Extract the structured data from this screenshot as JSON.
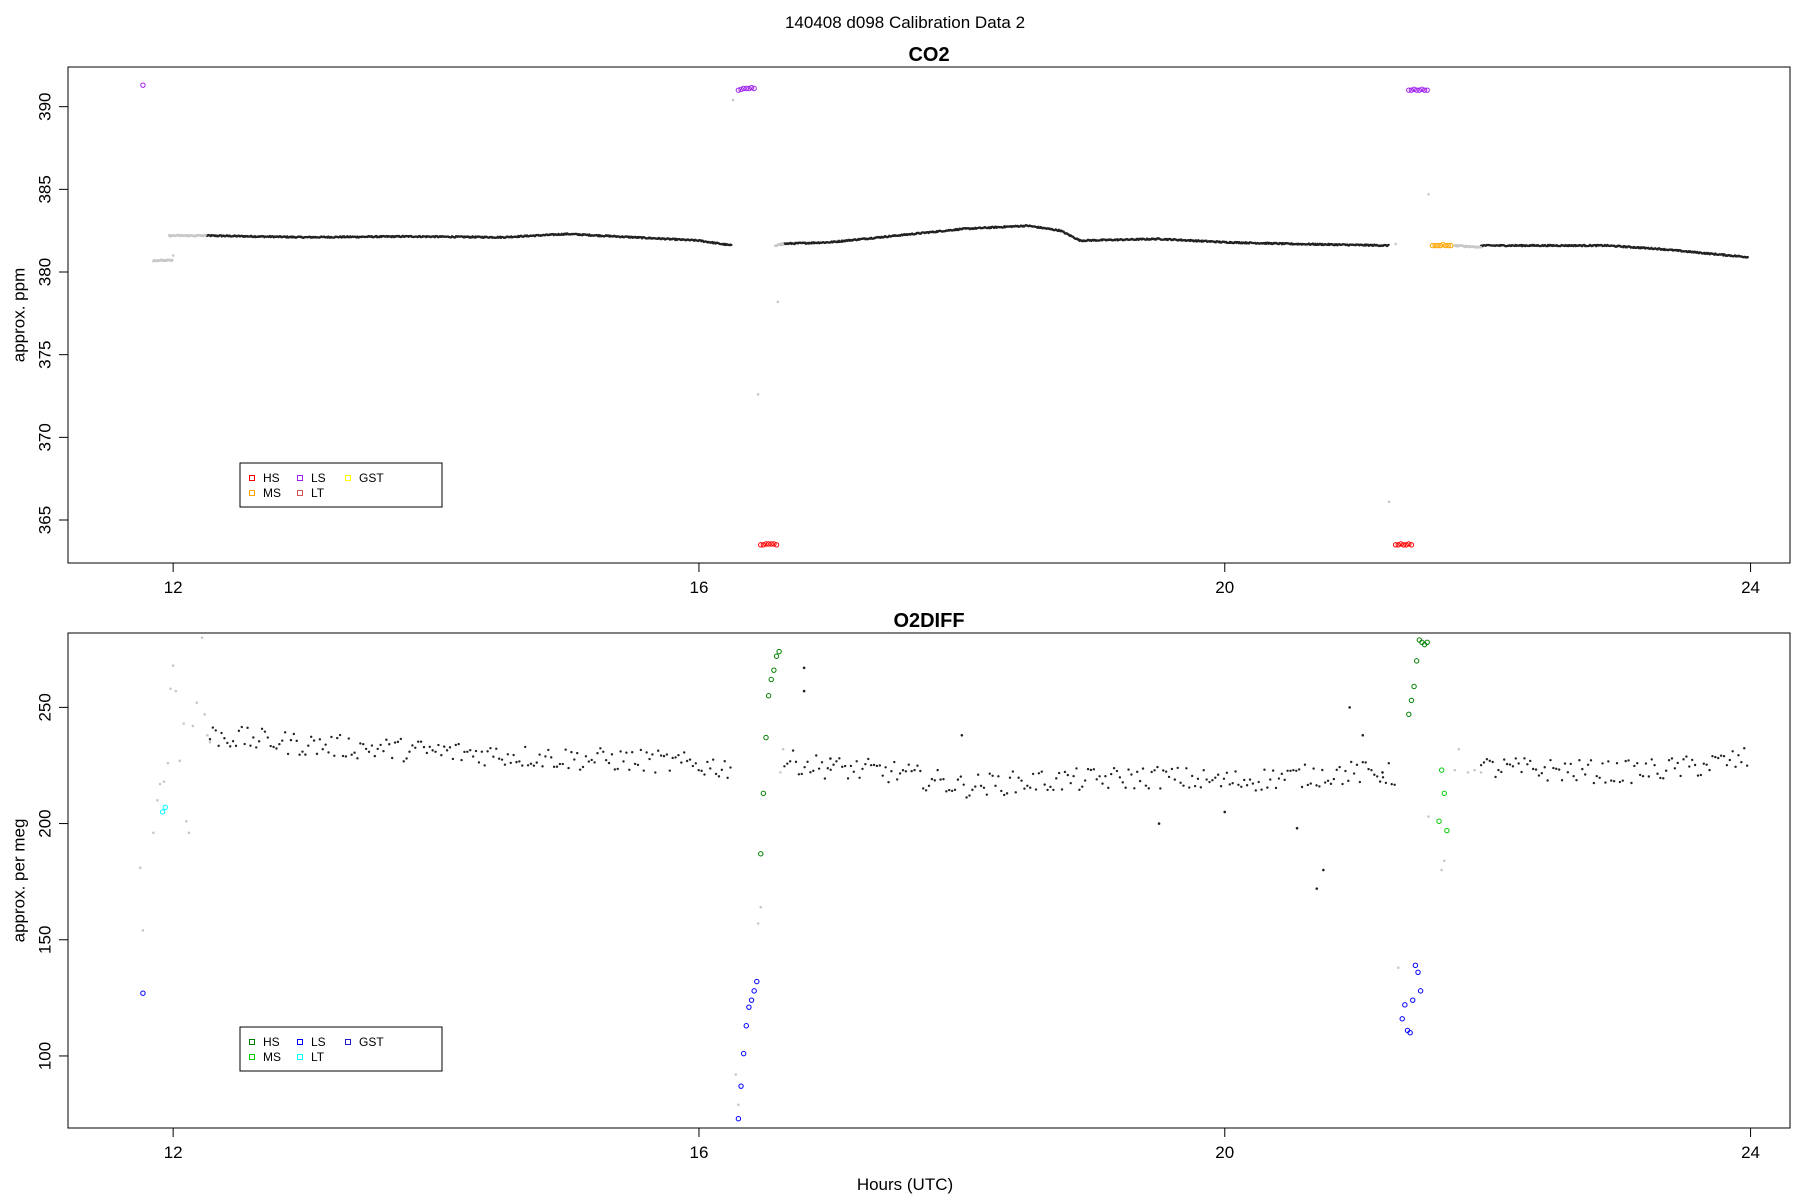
{
  "page_title": "140408   d098   Calibration Data 2",
  "xlabel": "Hours (UTC)",
  "chart_data": [
    {
      "type": "scatter",
      "title": "CO2",
      "ylabel": "approx. ppm",
      "xlim": [
        11.2,
        24.3
      ],
      "ylim": [
        362.4,
        392.4
      ],
      "xticks": [
        12,
        16,
        20,
        24
      ],
      "yticks": [
        365,
        370,
        375,
        380,
        385,
        390
      ],
      "grid": false,
      "legend_placement": "bottom-left",
      "legend": [
        {
          "name": "HS",
          "color": "#ff0000"
        },
        {
          "name": "MS",
          "color": "#ffa500"
        },
        {
          "name": "LS",
          "color": "#a020f0"
        },
        {
          "name": "LT",
          "color": "#cd5555"
        },
        {
          "name": "GST",
          "color": "#ffff00"
        }
      ],
      "series": [
        {
          "kind": "measurement",
          "color": "#222222",
          "segments": [
            {
              "x_start": 12.25,
              "x_end": 16.25,
              "points": [
                [
                  12.25,
                  382.2
                ],
                [
                  13.0,
                  382.1
                ],
                [
                  13.8,
                  382.15
                ],
                [
                  14.5,
                  382.1
                ],
                [
                  15.0,
                  382.3
                ],
                [
                  15.5,
                  382.1
                ],
                [
                  16.0,
                  381.9
                ],
                [
                  16.25,
                  381.6
                ]
              ]
            },
            {
              "x_start": 16.62,
              "x_end": 21.25,
              "points": [
                [
                  16.62,
                  381.7
                ],
                [
                  17.0,
                  381.8
                ],
                [
                  17.5,
                  382.2
                ],
                [
                  18.0,
                  382.6
                ],
                [
                  18.5,
                  382.8
                ],
                [
                  18.75,
                  382.5
                ],
                [
                  18.9,
                  381.9
                ],
                [
                  19.5,
                  382.0
                ],
                [
                  20.0,
                  381.8
                ],
                [
                  20.5,
                  381.7
                ],
                [
                  21.25,
                  381.6
                ]
              ]
            },
            {
              "x_start": 21.95,
              "x_end": 23.98,
              "points": [
                [
                  21.95,
                  381.6
                ],
                [
                  22.5,
                  381.6
                ],
                [
                  22.9,
                  381.6
                ],
                [
                  23.3,
                  381.4
                ],
                [
                  23.7,
                  381.1
                ],
                [
                  23.98,
                  380.9
                ]
              ]
            }
          ]
        },
        {
          "kind": "excluded",
          "color": "#c8c8c8",
          "segments": [
            {
              "x_start": 11.85,
              "x_end": 12.0,
              "points": [
                [
                  11.85,
                  380.7
                ],
                [
                  12.0,
                  380.7
                ]
              ]
            },
            {
              "x_start": 11.97,
              "x_end": 12.25,
              "points": [
                [
                  11.97,
                  382.2
                ],
                [
                  12.25,
                  382.2
                ]
              ]
            },
            {
              "x_start": 16.58,
              "x_end": 16.64,
              "points": [
                [
                  16.58,
                  381.6
                ],
                [
                  16.64,
                  381.7
                ]
              ]
            },
            {
              "x_start": 21.75,
              "x_end": 21.95,
              "points": [
                [
                  21.75,
                  381.6
                ],
                [
                  21.95,
                  381.5
                ]
              ]
            }
          ],
          "scatter": [
            [
              12.0,
              381.0
            ],
            [
              16.26,
              390.4
            ],
            [
              16.45,
              372.6
            ],
            [
              16.6,
              378.2
            ],
            [
              21.25,
              366.1
            ],
            [
              21.3,
              381.7
            ],
            [
              21.55,
              384.7
            ]
          ]
        },
        {
          "name": "LS",
          "color": "#a020f0",
          "points": [
            [
              11.77,
              391.3
            ],
            [
              16.3,
              391.0
            ],
            [
              16.32,
              391.05
            ],
            [
              16.34,
              391.1
            ],
            [
              16.36,
              391.1
            ],
            [
              16.38,
              391.1
            ],
            [
              16.4,
              391.15
            ],
            [
              16.42,
              391.1
            ],
            [
              21.4,
              391.0
            ],
            [
              21.42,
              391.0
            ],
            [
              21.44,
              391.05
            ],
            [
              21.46,
              391.0
            ],
            [
              21.48,
              391.0
            ],
            [
              21.5,
              391.05
            ],
            [
              21.52,
              391.0
            ],
            [
              21.54,
              391.0
            ]
          ]
        },
        {
          "name": "HS",
          "color": "#ff0000",
          "points": [
            [
              16.47,
              363.5
            ],
            [
              16.49,
              363.5
            ],
            [
              16.51,
              363.55
            ],
            [
              16.53,
              363.55
            ],
            [
              16.55,
              363.55
            ],
            [
              16.57,
              363.55
            ],
            [
              16.59,
              363.5
            ],
            [
              21.3,
              363.5
            ],
            [
              21.32,
              363.5
            ],
            [
              21.34,
              363.55
            ],
            [
              21.36,
              363.5
            ],
            [
              21.38,
              363.5
            ],
            [
              21.4,
              363.55
            ],
            [
              21.42,
              363.5
            ]
          ]
        },
        {
          "name": "MS",
          "color": "#ffa500",
          "points": [
            [
              21.58,
              381.6
            ],
            [
              21.6,
              381.6
            ],
            [
              21.62,
              381.6
            ],
            [
              21.64,
              381.6
            ],
            [
              21.66,
              381.65
            ],
            [
              21.68,
              381.6
            ],
            [
              21.7,
              381.6
            ],
            [
              21.72,
              381.6
            ]
          ]
        }
      ]
    },
    {
      "type": "scatter",
      "title": "O2DIFF",
      "ylabel": "approx. per meg",
      "xlim": [
        11.2,
        24.3
      ],
      "ylim": [
        69,
        282
      ],
      "xticks": [
        12,
        16,
        20,
        24
      ],
      "yticks": [
        100,
        150,
        200,
        250
      ],
      "grid": false,
      "legend_placement": "bottom-left",
      "legend": [
        {
          "name": "HS",
          "color": "#008000"
        },
        {
          "name": "MS",
          "color": "#00cc00"
        },
        {
          "name": "LS",
          "color": "#0000ff"
        },
        {
          "name": "LT",
          "color": "#00ffff"
        },
        {
          "name": "GST",
          "color": "#1c1cc8"
        }
      ],
      "series": [
        {
          "kind": "measurement",
          "color": "#222222",
          "segments": [
            {
              "x_start": 12.28,
              "x_end": 16.25,
              "points": [
                [
                  12.28,
                  238
                ],
                [
                  13.0,
                  234
                ],
                [
                  14.0,
                  231
                ],
                [
                  15.0,
                  228
                ],
                [
                  15.6,
                  227
                ],
                [
                  16.25,
                  224
                ]
              ]
            },
            {
              "x_start": 16.65,
              "x_end": 21.3,
              "points": [
                [
                  16.65,
                  227
                ],
                [
                  17.0,
                  224
                ],
                [
                  17.5,
                  222
                ],
                [
                  18.0,
                  216
                ],
                [
                  18.5,
                  218
                ],
                [
                  19.0,
                  219
                ],
                [
                  19.5,
                  220
                ],
                [
                  20.0,
                  218
                ],
                [
                  20.5,
                  220
                ],
                [
                  21.0,
                  222
                ],
                [
                  21.3,
                  221
                ]
              ]
            },
            {
              "x_start": 21.95,
              "x_end": 23.98,
              "points": [
                [
                  21.95,
                  224
                ],
                [
                  22.5,
                  223
                ],
                [
                  23.0,
                  222
                ],
                [
                  23.5,
                  224
                ],
                [
                  23.98,
                  228
                ]
              ]
            }
          ],
          "spread": 5,
          "outliers": [
            [
              16.8,
              267
            ],
            [
              16.8,
              257
            ],
            [
              17.0,
              228
            ],
            [
              18.0,
              238
            ],
            [
              20.55,
              198
            ],
            [
              20.7,
              172
            ],
            [
              20.75,
              180
            ],
            [
              20.95,
              250
            ],
            [
              21.05,
              238
            ],
            [
              21.2,
              222
            ],
            [
              19.5,
              200
            ],
            [
              20.0,
              205
            ]
          ]
        },
        {
          "kind": "excluded",
          "color": "#c8c8c8",
          "scatter": [
            [
              11.75,
              181
            ],
            [
              11.77,
              154
            ],
            [
              11.85,
              196
            ],
            [
              11.88,
              210
            ],
            [
              11.9,
              217
            ],
            [
              11.93,
              218
            ],
            [
              11.96,
              226
            ],
            [
              11.98,
              258
            ],
            [
              12.0,
              268
            ],
            [
              12.02,
              257
            ],
            [
              12.05,
              227
            ],
            [
              12.08,
              243
            ],
            [
              12.1,
              201
            ],
            [
              12.12,
              196
            ],
            [
              12.15,
              242
            ],
            [
              12.18,
              252
            ],
            [
              12.22,
              280
            ],
            [
              12.24,
              247
            ],
            [
              12.26,
              238
            ],
            [
              12.28,
              235
            ],
            [
              16.28,
              92
            ],
            [
              16.3,
              79
            ],
            [
              16.45,
              157
            ],
            [
              16.47,
              164
            ],
            [
              16.62,
              222
            ],
            [
              16.64,
              232
            ],
            [
              21.32,
              138
            ],
            [
              21.55,
              203
            ],
            [
              21.65,
              180
            ],
            [
              21.67,
              184
            ],
            [
              21.75,
              223
            ],
            [
              21.78,
              232
            ],
            [
              21.85,
              222
            ],
            [
              21.9,
              223
            ],
            [
              21.95,
              222
            ]
          ]
        },
        {
          "name": "LS",
          "color": "#0000ff",
          "points": [
            [
              11.77,
              127
            ],
            [
              16.3,
              73
            ],
            [
              16.32,
              87
            ],
            [
              16.34,
              101
            ],
            [
              16.36,
              113
            ],
            [
              16.38,
              121
            ],
            [
              16.4,
              124
            ],
            [
              16.42,
              128
            ],
            [
              16.44,
              132
            ],
            [
              21.35,
              116
            ],
            [
              21.37,
              122
            ],
            [
              21.39,
              111
            ],
            [
              21.41,
              110
            ],
            [
              21.43,
              124
            ],
            [
              21.45,
              139
            ],
            [
              21.47,
              136
            ],
            [
              21.49,
              128
            ]
          ]
        },
        {
          "name": "HS",
          "color": "#008000",
          "points": [
            [
              16.47,
              187
            ],
            [
              16.49,
              213
            ],
            [
              16.51,
              237
            ],
            [
              16.53,
              255
            ],
            [
              16.55,
              262
            ],
            [
              16.57,
              266
            ],
            [
              16.59,
              272
            ],
            [
              16.61,
              274
            ],
            [
              21.4,
              247
            ],
            [
              21.42,
              253
            ],
            [
              21.44,
              259
            ],
            [
              21.46,
              270
            ],
            [
              21.48,
              279
            ],
            [
              21.5,
              278
            ],
            [
              21.52,
              277
            ],
            [
              21.54,
              278
            ]
          ]
        },
        {
          "name": "MS",
          "color": "#00cc00",
          "points": [
            [
              21.63,
              201
            ],
            [
              21.65,
              223
            ],
            [
              21.67,
              213
            ],
            [
              21.69,
              197
            ]
          ]
        },
        {
          "name": "LT",
          "color": "#00ffff",
          "points": [
            [
              11.92,
              205
            ],
            [
              11.94,
              207
            ]
          ]
        }
      ]
    }
  ]
}
